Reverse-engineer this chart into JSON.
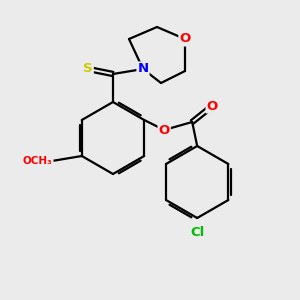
{
  "background_color": "#ebebeb",
  "bond_color": "#000000",
  "atom_colors": {
    "O": "#ff0000",
    "N": "#0000ff",
    "S": "#cccc00",
    "Cl": "#00bb00",
    "C": "#000000"
  },
  "figsize": [
    3.0,
    3.0
  ],
  "dpi": 100
}
